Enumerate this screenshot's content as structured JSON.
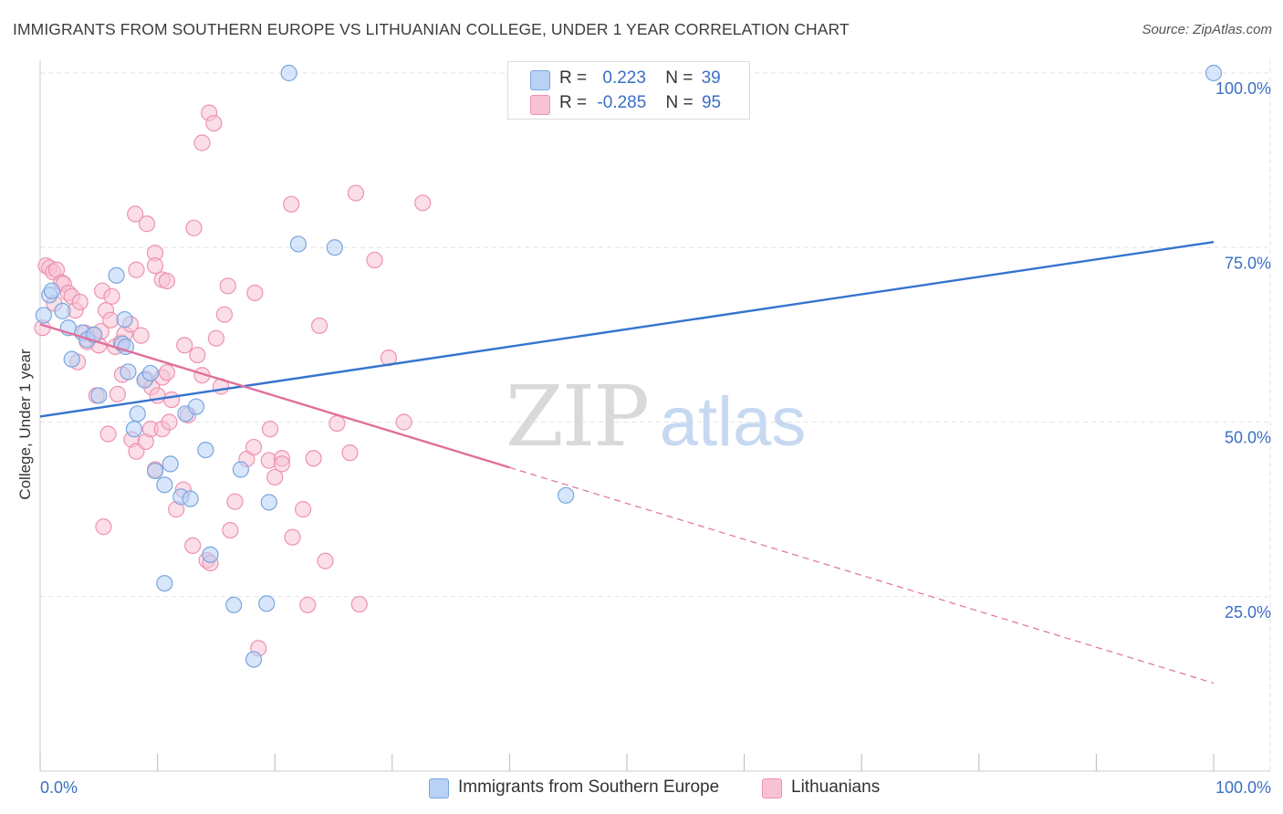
{
  "title": "IMMIGRANTS FROM SOUTHERN EUROPE VS LITHUANIAN COLLEGE, UNDER 1 YEAR CORRELATION CHART",
  "source": "Source: ZipAtlas.com",
  "watermark": {
    "zip": "ZIP",
    "atlas": "atlas"
  },
  "legend": {
    "rows": [
      {
        "r_label": "R =",
        "r_value": "0.223",
        "n_label": "N =",
        "n_value": "39"
      },
      {
        "r_label": "R =",
        "r_value": "-0.285",
        "n_label": "N =",
        "n_value": "95"
      }
    ]
  },
  "colors": {
    "blue_fill": "#b7d2f5",
    "blue_stroke": "#7aa6e0",
    "blue_line": "#3474cf",
    "pink_fill": "#f7c3d4",
    "pink_stroke": "#ee92b1",
    "pink_line": "#e0709a",
    "axis_label": "#3a6fc4",
    "grid": "#e3e3e3"
  },
  "chart_data": {
    "type": "scatter",
    "title": "IMMIGRANTS FROM SOUTHERN EUROPE VS LITHUANIAN COLLEGE, UNDER 1 YEAR CORRELATION CHART",
    "xlabel": "",
    "ylabel": "College, Under 1 year",
    "xlim": [
      0,
      100
    ],
    "ylim": [
      0,
      100
    ],
    "x_tick_labels": [
      "0.0%",
      "100.0%"
    ],
    "y_tick_labels": [
      "25.0%",
      "50.0%",
      "75.0%",
      "100.0%"
    ],
    "y_ticks": [
      25,
      50,
      75,
      100
    ],
    "grid": true,
    "legend_placement": "top-center",
    "series": [
      {
        "name": "Immigrants from Southern Europe",
        "color": "#b7d2f5",
        "points": [
          [
            0.3,
            65.3
          ],
          [
            0.8,
            68.2
          ],
          [
            1.0,
            68.8
          ],
          [
            1.9,
            65.9
          ],
          [
            2.4,
            63.5
          ],
          [
            2.7,
            59.0
          ],
          [
            3.6,
            62.8
          ],
          [
            4.0,
            61.8
          ],
          [
            4.6,
            62.5
          ],
          [
            5.0,
            53.8
          ],
          [
            6.5,
            71.0
          ],
          [
            7.0,
            61.2
          ],
          [
            7.2,
            64.7
          ],
          [
            7.5,
            57.2
          ],
          [
            8.0,
            49.0
          ],
          [
            8.3,
            51.2
          ],
          [
            8.9,
            56.0
          ],
          [
            9.4,
            57.0
          ],
          [
            9.8,
            43.0
          ],
          [
            10.6,
            41.0
          ],
          [
            11.1,
            44.0
          ],
          [
            12.0,
            39.3
          ],
          [
            12.4,
            51.2
          ],
          [
            12.8,
            39.0
          ],
          [
            13.3,
            52.2
          ],
          [
            14.1,
            46.0
          ],
          [
            14.5,
            31.0
          ],
          [
            16.5,
            23.8
          ],
          [
            17.1,
            43.2
          ],
          [
            18.2,
            16.0
          ],
          [
            19.3,
            24.0
          ],
          [
            21.2,
            100.0
          ],
          [
            22.0,
            75.5
          ],
          [
            25.1,
            75.0
          ],
          [
            44.8,
            39.5
          ],
          [
            10.6,
            26.9
          ],
          [
            19.5,
            38.5
          ],
          [
            100.0,
            100.0
          ],
          [
            7.3,
            60.8
          ]
        ],
        "trend": {
          "x": [
            0,
            100
          ],
          "y": [
            50.8,
            75.8
          ],
          "style": "solid"
        }
      },
      {
        "name": "Lithuanians",
        "color": "#f7c3d4",
        "points": [
          [
            0.2,
            63.5
          ],
          [
            0.5,
            72.4
          ],
          [
            0.8,
            72.1
          ],
          [
            1.1,
            71.5
          ],
          [
            1.4,
            71.8
          ],
          [
            1.8,
            70.0
          ],
          [
            2.0,
            69.8
          ],
          [
            2.4,
            68.5
          ],
          [
            2.7,
            68.0
          ],
          [
            3.0,
            66.0
          ],
          [
            3.4,
            67.2
          ],
          [
            3.8,
            62.8
          ],
          [
            4.0,
            61.5
          ],
          [
            4.5,
            62.5
          ],
          [
            5.0,
            61.0
          ],
          [
            5.2,
            63.0
          ],
          [
            5.6,
            66.0
          ],
          [
            6.0,
            64.6
          ],
          [
            6.4,
            60.8
          ],
          [
            6.9,
            61.4
          ],
          [
            7.2,
            62.6
          ],
          [
            7.7,
            64.0
          ],
          [
            8.2,
            71.8
          ],
          [
            8.6,
            62.4
          ],
          [
            9.0,
            56.2
          ],
          [
            9.5,
            55.0
          ],
          [
            10.0,
            53.8
          ],
          [
            10.4,
            56.4
          ],
          [
            10.8,
            57.1
          ],
          [
            11.2,
            53.2
          ],
          [
            3.2,
            58.6
          ],
          [
            4.8,
            53.8
          ],
          [
            5.8,
            48.3
          ],
          [
            6.6,
            54.0
          ],
          [
            7.0,
            56.8
          ],
          [
            7.8,
            47.5
          ],
          [
            8.2,
            45.8
          ],
          [
            9.0,
            47.2
          ],
          [
            9.4,
            49.0
          ],
          [
            9.8,
            43.2
          ],
          [
            10.4,
            49.0
          ],
          [
            11.0,
            50.0
          ],
          [
            11.6,
            37.5
          ],
          [
            12.2,
            40.3
          ],
          [
            12.6,
            51.0
          ],
          [
            13.0,
            32.3
          ],
          [
            13.4,
            59.6
          ],
          [
            13.8,
            56.7
          ],
          [
            14.2,
            30.2
          ],
          [
            14.5,
            29.8
          ],
          [
            15.4,
            55.1
          ],
          [
            16.2,
            34.5
          ],
          [
            16.6,
            38.6
          ],
          [
            17.6,
            44.7
          ],
          [
            18.2,
            46.4
          ],
          [
            18.6,
            17.6
          ],
          [
            19.5,
            44.5
          ],
          [
            20.0,
            42.1
          ],
          [
            20.6,
            44.8
          ],
          [
            21.5,
            33.5
          ],
          [
            22.4,
            37.5
          ],
          [
            22.8,
            23.8
          ],
          [
            23.3,
            44.8
          ],
          [
            24.3,
            30.1
          ],
          [
            25.3,
            49.8
          ],
          [
            26.4,
            45.6
          ],
          [
            27.2,
            23.9
          ],
          [
            28.5,
            73.2
          ],
          [
            29.7,
            59.2
          ],
          [
            31.0,
            50.0
          ],
          [
            14.4,
            94.3
          ],
          [
            14.8,
            92.8
          ],
          [
            13.8,
            90.0
          ],
          [
            8.1,
            79.8
          ],
          [
            9.1,
            78.4
          ],
          [
            13.1,
            77.8
          ],
          [
            9.8,
            74.2
          ],
          [
            9.8,
            72.4
          ],
          [
            10.4,
            70.4
          ],
          [
            10.8,
            70.2
          ],
          [
            15.7,
            65.4
          ],
          [
            16.0,
            69.5
          ],
          [
            18.3,
            68.5
          ],
          [
            21.4,
            81.2
          ],
          [
            23.8,
            63.8
          ],
          [
            26.9,
            82.8
          ],
          [
            32.6,
            81.4
          ],
          [
            5.3,
            68.8
          ],
          [
            6.1,
            68.0
          ],
          [
            12.3,
            61.0
          ],
          [
            15.0,
            62.0
          ],
          [
            19.6,
            49.0
          ],
          [
            20.6,
            44.0
          ],
          [
            5.4,
            35.0
          ],
          [
            1.2,
            67.0
          ]
        ],
        "trend": {
          "x": [
            0,
            40
          ],
          "y": [
            64.0,
            43.5
          ],
          "style": "solid",
          "extension": {
            "x": [
              40,
              100
            ],
            "y": [
              43.5,
              12.6
            ],
            "style": "dashed"
          }
        }
      }
    ]
  }
}
